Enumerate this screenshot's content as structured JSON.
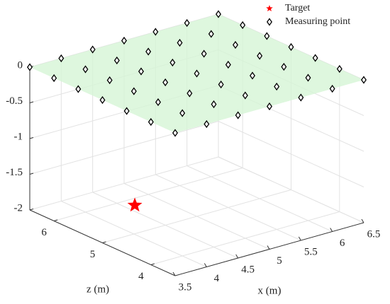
{
  "chart_data": {
    "type": "scatter3d",
    "xlabel": "x (m)",
    "zlabel": "z (m)",
    "xlim": [
      3.5,
      6.5
    ],
    "zlim": [
      3.5,
      6.5
    ],
    "ylim": [
      -2,
      0
    ],
    "xticks": [
      3.5,
      4,
      4.5,
      5,
      5.5,
      6,
      6.5
    ],
    "zticks": [
      4,
      5,
      6
    ],
    "yticks": [
      -2,
      -1.5,
      -1,
      -0.5,
      0
    ],
    "grid": true,
    "legend": "upper right",
    "plane": {
      "y": 0,
      "color": "#d6f5d6"
    },
    "series": [
      {
        "name": "Target",
        "marker": "star",
        "color": "#ff0000",
        "x": [
          4.4
        ],
        "y": [
          -1.85
        ],
        "z": [
          5.5
        ]
      },
      {
        "name": "Measuring point",
        "marker": "diamond",
        "color": "#000000",
        "x": [
          3.5,
          4,
          4.5,
          5,
          5.5,
          6,
          6.5,
          3.5,
          4,
          4.5,
          5,
          5.5,
          6,
          6.5,
          3.5,
          4,
          4.5,
          5,
          5.5,
          6,
          6.5,
          3.5,
          4,
          4.5,
          5,
          5.5,
          6,
          6.5,
          3.5,
          4,
          4.5,
          5,
          5.5,
          6,
          6.5,
          3.5,
          4,
          4.5,
          5,
          5.5,
          6,
          6.5,
          3.5,
          4,
          4.5,
          5,
          5.5,
          6,
          6.5
        ],
        "y": [
          0,
          0,
          0,
          0,
          0,
          0,
          0,
          0,
          0,
          0,
          0,
          0,
          0,
          0,
          0,
          0,
          0,
          0,
          0,
          0,
          0,
          0,
          0,
          0,
          0,
          0,
          0,
          0,
          0,
          0,
          0,
          0,
          0,
          0,
          0,
          0,
          0,
          0,
          0,
          0,
          0,
          0,
          0,
          0,
          0,
          0,
          0,
          0,
          0
        ],
        "z": [
          6.5,
          6.5,
          6.5,
          6.5,
          6.5,
          6.5,
          6.5,
          6,
          6,
          6,
          6,
          6,
          6,
          6,
          5.5,
          5.5,
          5.5,
          5.5,
          5.5,
          5.5,
          5.5,
          5,
          5,
          5,
          5,
          5,
          5,
          5,
          4.5,
          4.5,
          4.5,
          4.5,
          4.5,
          4.5,
          4.5,
          4,
          4,
          4,
          4,
          4,
          4,
          4,
          3.5,
          3.5,
          3.5,
          3.5,
          3.5,
          3.5,
          3.5
        ]
      }
    ]
  }
}
